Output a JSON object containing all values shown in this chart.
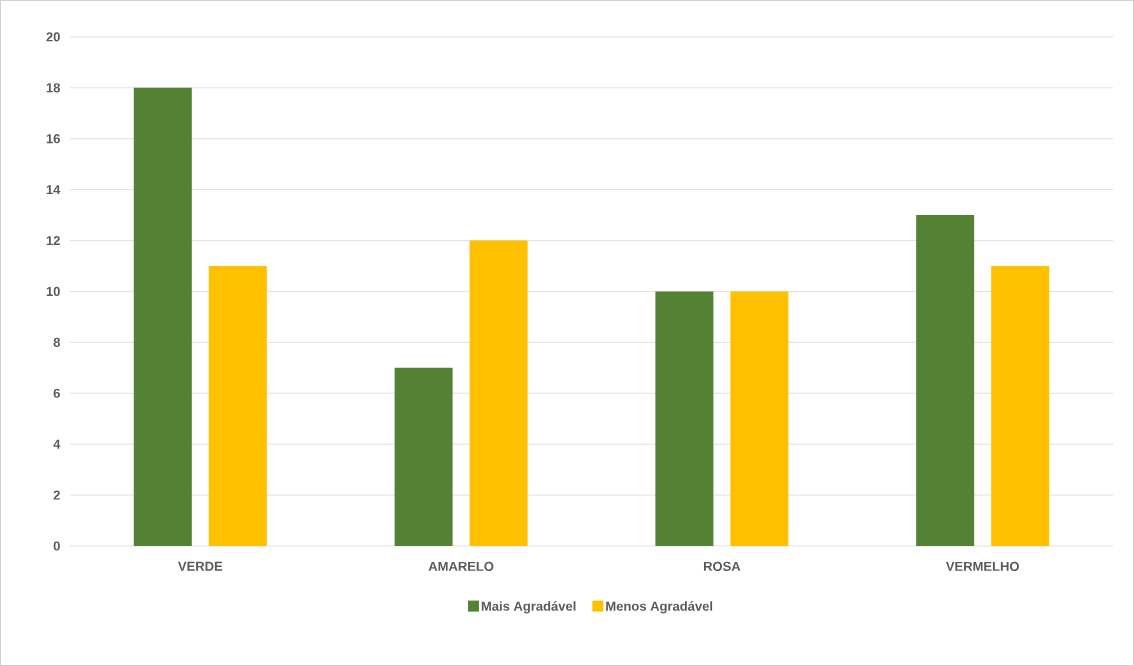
{
  "chart_data": {
    "type": "bar",
    "categories": [
      "VERDE",
      "AMARELO",
      "ROSA",
      "VERMELHO"
    ],
    "series": [
      {
        "name": "Mais Agradável",
        "color": "#548235",
        "values": [
          18,
          7,
          10,
          13
        ]
      },
      {
        "name": "Menos Agradável",
        "color": "#ffc000",
        "values": [
          11,
          12,
          10,
          11
        ]
      }
    ],
    "ylim": [
      0,
      20
    ],
    "yticks": [
      0,
      2,
      4,
      6,
      8,
      10,
      12,
      14,
      16,
      18,
      20
    ],
    "grid": "y",
    "legend": "bottom"
  }
}
